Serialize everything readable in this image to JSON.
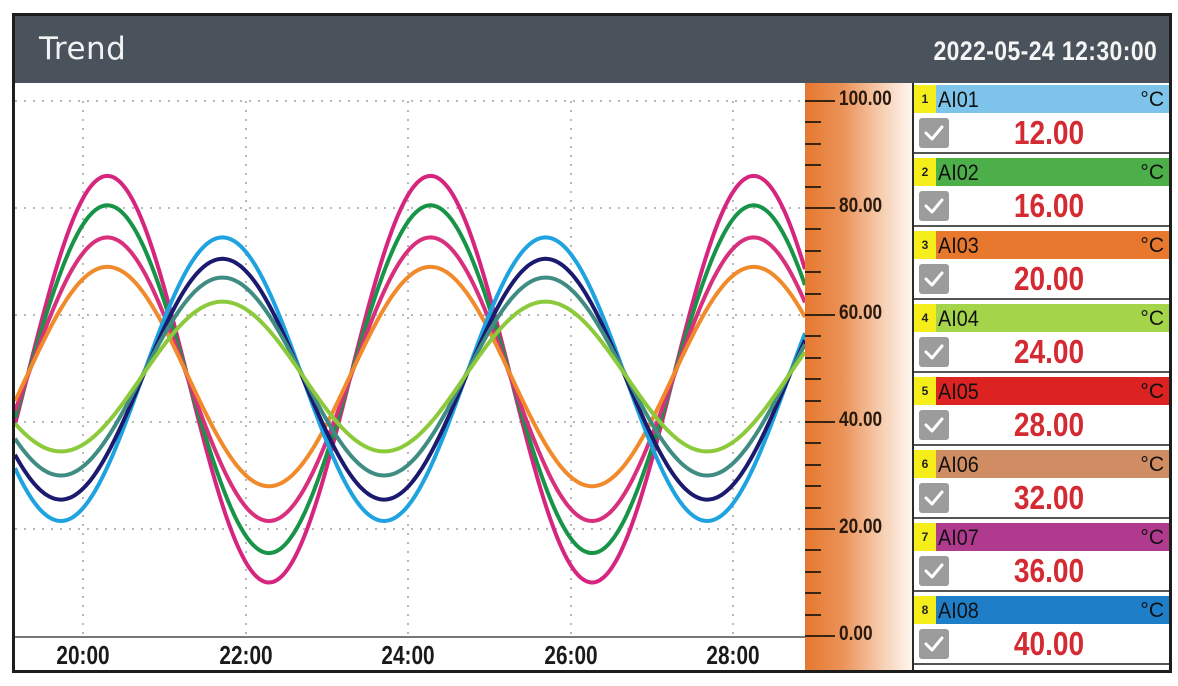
{
  "header": {
    "title": "Trend",
    "datetime": "2022-05-24 12:30:00"
  },
  "scale": {
    "labels": [
      "100.00",
      "80.00",
      "60.00",
      "40.00",
      "20.00",
      "0.00"
    ]
  },
  "xaxis": {
    "labels": [
      "20:00",
      "22:00",
      "24:00",
      "26:00",
      "28:00"
    ]
  },
  "channels": [
    {
      "num": "1",
      "name": "AI01",
      "unit": "°C",
      "value": "12.00",
      "color": "#7ec4ea"
    },
    {
      "num": "2",
      "name": "AI02",
      "unit": "°C",
      "value": "16.00",
      "color": "#4daf4a"
    },
    {
      "num": "3",
      "name": "AI03",
      "unit": "°C",
      "value": "20.00",
      "color": "#e8782e"
    },
    {
      "num": "4",
      "name": "AI04",
      "unit": "°C",
      "value": "24.00",
      "color": "#a4d44a"
    },
    {
      "num": "5",
      "name": "AI05",
      "unit": "°C",
      "value": "28.00",
      "color": "#dd2222"
    },
    {
      "num": "6",
      "name": "AI06",
      "unit": "°C",
      "value": "32.00",
      "color": "#d08c62"
    },
    {
      "num": "7",
      "name": "AI07",
      "unit": "°C",
      "value": "36.00",
      "color": "#b03a8e"
    },
    {
      "num": "8",
      "name": "AI08",
      "unit": "°C",
      "value": "40.00",
      "color": "#1e7fc8"
    }
  ],
  "chart_data": {
    "type": "line",
    "title": "Trend",
    "xlabel": "",
    "ylabel": "°C",
    "ylim": [
      0,
      100
    ],
    "yticks": [
      0,
      20,
      40,
      60,
      80,
      100
    ],
    "xticks": [
      "20:00",
      "22:00",
      "24:00",
      "26:00",
      "28:00"
    ],
    "x_range_hours": [
      19.2,
      28.9
    ],
    "grid": true,
    "series": [
      {
        "name": "magenta-large",
        "color": "#d6257f",
        "center": 48,
        "amplitude": 38,
        "peak_at": "20:18",
        "period_hours": 4.85
      },
      {
        "name": "green",
        "color": "#179447",
        "center": 48,
        "amplitude": 32.5,
        "peak_at": "20:18",
        "period_hours": 4.85
      },
      {
        "name": "pink",
        "color": "#d8307c",
        "center": 48,
        "amplitude": 26.5,
        "peak_at": "20:18",
        "period_hours": 4.85
      },
      {
        "name": "orange",
        "color": "#f08a2a",
        "center": 48.5,
        "amplitude": 20.5,
        "peak_at": "20:18",
        "period_hours": 4.85
      },
      {
        "name": "cyan",
        "color": "#1ea3e0",
        "center": 48,
        "amplitude": 26.5,
        "peak_at": "21:43",
        "period_hours": 4.85
      },
      {
        "name": "navy",
        "color": "#1c1a6e",
        "center": 48,
        "amplitude": 22.5,
        "peak_at": "21:43",
        "period_hours": 4.85
      },
      {
        "name": "teal",
        "color": "#3f8c82",
        "center": 48.5,
        "amplitude": 18.5,
        "peak_at": "21:43",
        "period_hours": 4.85
      },
      {
        "name": "lime",
        "color": "#8cca3c",
        "center": 48.5,
        "amplitude": 14,
        "peak_at": "21:43",
        "period_hours": 4.85
      }
    ]
  }
}
